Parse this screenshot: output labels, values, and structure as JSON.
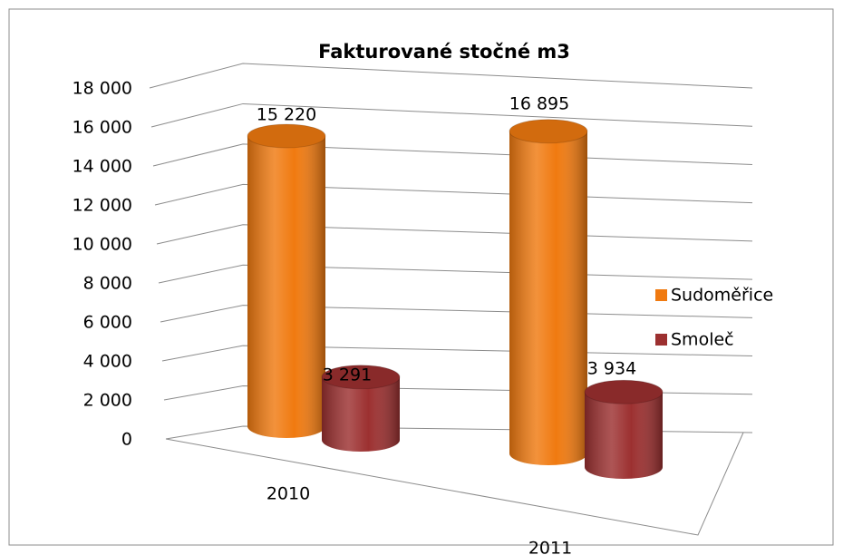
{
  "chart_data": {
    "type": "bar3d",
    "title": "Fakturované stočné m3",
    "categories": [
      "2010",
      "2011"
    ],
    "series": [
      {
        "name": "Sudoměřice",
        "color": "#f07a10",
        "values": [
          15220,
          16895
        ],
        "value_labels": [
          "15 220",
          "16 895"
        ]
      },
      {
        "name": "Smoleč",
        "color": "#9c3030",
        "values": [
          3291,
          3934
        ],
        "value_labels": [
          "3 291",
          "3 934"
        ]
      }
    ],
    "ylim": [
      0,
      18000
    ],
    "yticks": [
      {
        "value": 0,
        "label": "0"
      },
      {
        "value": 2000,
        "label": "2 000"
      },
      {
        "value": 4000,
        "label": "4 000"
      },
      {
        "value": 6000,
        "label": "6 000"
      },
      {
        "value": 8000,
        "label": "8 000"
      },
      {
        "value": 10000,
        "label": "10 000"
      },
      {
        "value": 12000,
        "label": "12 000"
      },
      {
        "value": 14000,
        "label": "14 000"
      },
      {
        "value": 16000,
        "label": "16 000"
      },
      {
        "value": 18000,
        "label": "18 000"
      }
    ],
    "grid": true,
    "legend": "right"
  }
}
